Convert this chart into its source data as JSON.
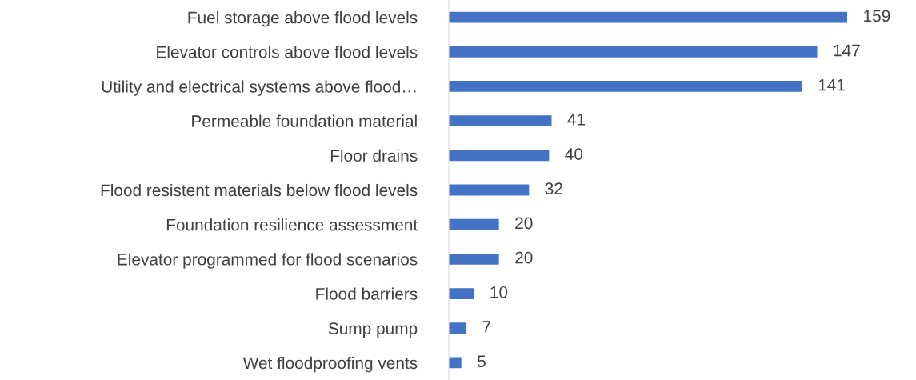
{
  "chart_data": {
    "type": "bar",
    "orientation": "horizontal",
    "categories": [
      "Fuel storage above flood levels",
      "Elevator controls above flood levels",
      "Utility and electrical systems above flood…",
      "Permeable foundation material",
      "Floor drains",
      "Flood resistent materials below flood levels",
      "Foundation resilience assessment",
      "Elevator programmed for flood scenarios",
      "Flood barriers",
      "Sump pump",
      "Wet floodproofing vents"
    ],
    "values": [
      159,
      147,
      141,
      41,
      40,
      32,
      20,
      20,
      10,
      7,
      5
    ],
    "color": "#4472c4",
    "data_labels": true,
    "grid": false,
    "legend": false,
    "tick_labels": "y"
  }
}
